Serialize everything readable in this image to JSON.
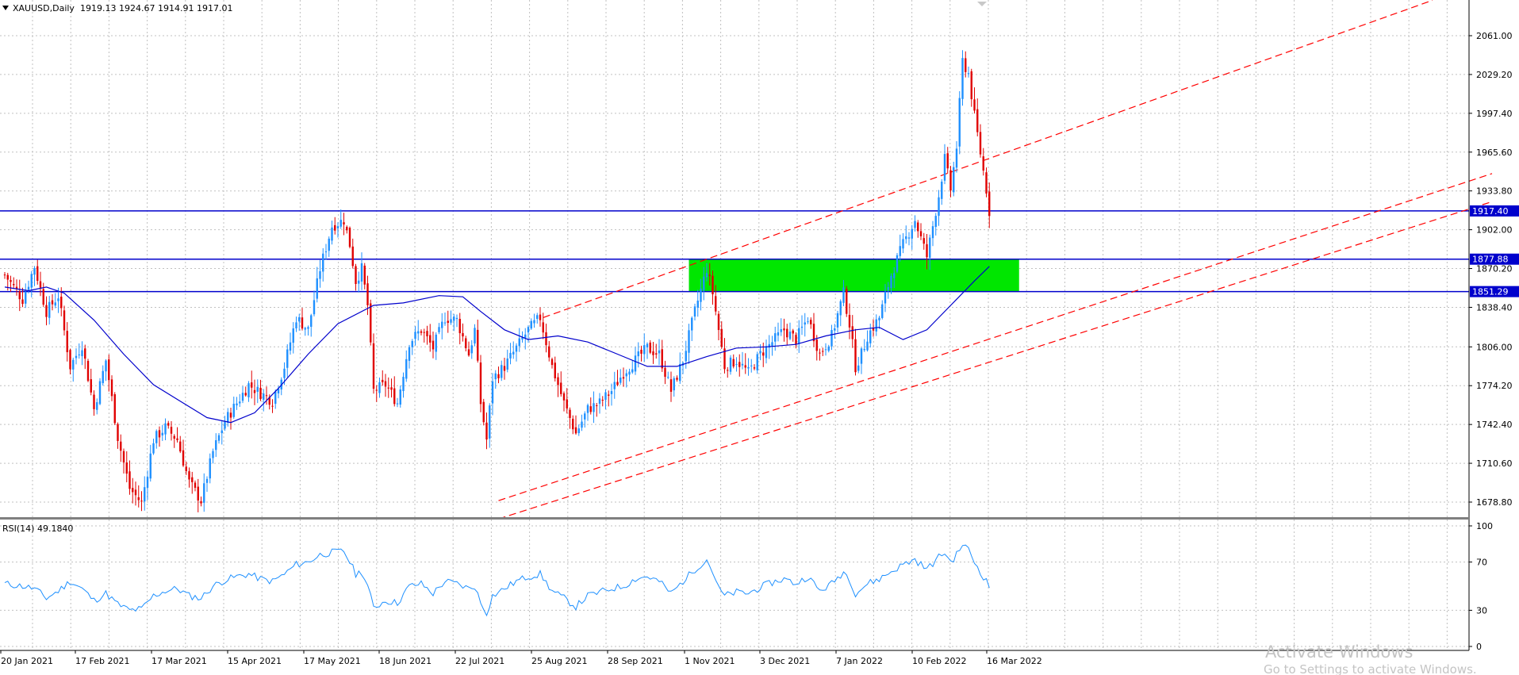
{
  "header": {
    "symbol": "XAUUSD,Daily",
    "ohlc": "1919.13 1924.67 1914.91 1917.01"
  },
  "rsi_header": "RSI(14) 49.1840",
  "watermark": {
    "line1": "Activate Windows",
    "line2": "Go to Settings to activate Windows."
  },
  "colors": {
    "bull": "#1e90ff",
    "bear": "#e00000",
    "ma": "#0000cc",
    "level": "#0000cc",
    "zone": "#00e600",
    "trend": "#ff0000",
    "rsi": "#1e90ff",
    "grid": "#c0c0c0"
  },
  "icons": {
    "menu": "triangle-down-icon",
    "shift": "chart-shift-triangle-icon"
  },
  "chart_data": [
    {
      "type": "candlestick",
      "title": "XAUUSD,Daily",
      "x_labels": [
        "20 Jan 2021",
        "17 Feb 2021",
        "17 Mar 2021",
        "15 Apr 2021",
        "17 May 2021",
        "18 Jun 2021",
        "22 Jul 2021",
        "25 Aug 2021",
        "28 Sep 2021",
        "1 Nov 2021",
        "3 Dec 2021",
        "7 Jan 2022",
        "10 Feb 2022",
        "16 Mar 2022"
      ],
      "y_ticks": [
        2061.0,
        2029.2,
        1997.4,
        1965.6,
        1933.8,
        1902.0,
        1870.2,
        1838.4,
        1806.0,
        1774.2,
        1742.4,
        1710.6,
        1678.8
      ],
      "ylim": [
        1665.0,
        2085.0
      ],
      "grid": true,
      "close_path": [
        [
          0,
          1865
        ],
        [
          6,
          1845
        ],
        [
          10,
          1872
        ],
        [
          14,
          1835
        ],
        [
          18,
          1848
        ],
        [
          22,
          1790
        ],
        [
          26,
          1808
        ],
        [
          30,
          1755
        ],
        [
          34,
          1795
        ],
        [
          38,
          1732
        ],
        [
          42,
          1690
        ],
        [
          46,
          1678
        ],
        [
          50,
          1730
        ],
        [
          54,
          1740
        ],
        [
          58,
          1730
        ],
        [
          62,
          1695
        ],
        [
          66,
          1680
        ],
        [
          70,
          1720
        ],
        [
          74,
          1745
        ],
        [
          78,
          1760
        ],
        [
          82,
          1775
        ],
        [
          86,
          1768
        ],
        [
          90,
          1762
        ],
        [
          94,
          1790
        ],
        [
          98,
          1830
        ],
        [
          102,
          1820
        ],
        [
          106,
          1870
        ],
        [
          110,
          1905
        ],
        [
          114,
          1910
        ],
        [
          116,
          1890
        ],
        [
          118,
          1860
        ],
        [
          120,
          1870
        ],
        [
          122,
          1840
        ],
        [
          124,
          1770
        ],
        [
          128,
          1775
        ],
        [
          132,
          1760
        ],
        [
          136,
          1810
        ],
        [
          140,
          1820
        ],
        [
          144,
          1805
        ],
        [
          148,
          1830
        ],
        [
          152,
          1828
        ],
        [
          156,
          1800
        ],
        [
          158,
          1820
        ],
        [
          160,
          1760
        ],
        [
          162,
          1730
        ],
        [
          164,
          1780
        ],
        [
          168,
          1790
        ],
        [
          172,
          1805
        ],
        [
          176,
          1820
        ],
        [
          180,
          1830
        ],
        [
          184,
          1790
        ],
        [
          188,
          1760
        ],
        [
          192,
          1735
        ],
        [
          196,
          1755
        ],
        [
          200,
          1760
        ],
        [
          204,
          1770
        ],
        [
          208,
          1785
        ],
        [
          212,
          1795
        ],
        [
          216,
          1805
        ],
        [
          220,
          1800
        ],
        [
          224,
          1770
        ],
        [
          228,
          1795
        ],
        [
          232,
          1835
        ],
        [
          236,
          1870
        ],
        [
          238,
          1850
        ],
        [
          240,
          1820
        ],
        [
          242,
          1790
        ],
        [
          246,
          1795
        ],
        [
          250,
          1785
        ],
        [
          254,
          1800
        ],
        [
          258,
          1810
        ],
        [
          262,
          1820
        ],
        [
          266,
          1812
        ],
        [
          270,
          1830
        ],
        [
          274,
          1800
        ],
        [
          278,
          1815
        ],
        [
          282,
          1850
        ],
        [
          284,
          1825
        ],
        [
          286,
          1790
        ],
        [
          288,
          1800
        ],
        [
          290,
          1815
        ],
        [
          294,
          1830
        ],
        [
          298,
          1865
        ],
        [
          302,
          1890
        ],
        [
          306,
          1910
        ],
        [
          310,
          1880
        ],
        [
          314,
          1930
        ],
        [
          316,
          1960
        ],
        [
          318,
          1935
        ],
        [
          320,
          1970
        ],
        [
          322,
          2040
        ],
        [
          324,
          2030
        ],
        [
          326,
          1995
        ],
        [
          328,
          1965
        ],
        [
          330,
          1935
        ],
        [
          331,
          1917
        ]
      ],
      "ma_path": [
        [
          0,
          1855
        ],
        [
          8,
          1852
        ],
        [
          14,
          1855
        ],
        [
          20,
          1850
        ],
        [
          30,
          1828
        ],
        [
          40,
          1800
        ],
        [
          50,
          1775
        ],
        [
          60,
          1760
        ],
        [
          68,
          1748
        ],
        [
          76,
          1744
        ],
        [
          84,
          1752
        ],
        [
          92,
          1772
        ],
        [
          102,
          1800
        ],
        [
          112,
          1825
        ],
        [
          124,
          1840
        ],
        [
          134,
          1842
        ],
        [
          146,
          1848
        ],
        [
          154,
          1847
        ],
        [
          160,
          1835
        ],
        [
          168,
          1820
        ],
        [
          176,
          1812
        ],
        [
          186,
          1815
        ],
        [
          196,
          1810
        ],
        [
          206,
          1800
        ],
        [
          216,
          1790
        ],
        [
          226,
          1790
        ],
        [
          236,
          1798
        ],
        [
          246,
          1805
        ],
        [
          256,
          1806
        ],
        [
          266,
          1808
        ],
        [
          276,
          1815
        ],
        [
          286,
          1820
        ],
        [
          294,
          1822
        ],
        [
          302,
          1812
        ],
        [
          310,
          1820
        ],
        [
          318,
          1840
        ],
        [
          326,
          1860
        ],
        [
          331,
          1872
        ]
      ],
      "horizontal_levels": [
        {
          "value": 1917.4,
          "label": "1917.40"
        },
        {
          "value": 1877.88,
          "label": "1877.88"
        },
        {
          "value": 1851.29,
          "label": "1851.29"
        }
      ],
      "zone": {
        "x0": 230,
        "x1": 341,
        "y0": 1851.29,
        "y1": 1877.88
      },
      "trendlines": [
        {
          "x0": 181,
          "y0": 1830,
          "x1": 480,
          "y1": 2090
        },
        {
          "x0": 166,
          "y0": 1680,
          "x1": 500,
          "y1": 1948
        },
        {
          "x0": 166,
          "y0": 1665,
          "x1": 500,
          "y1": 1925
        }
      ],
      "n_bars": 332
    },
    {
      "type": "line",
      "title": "RSI(14) 49.1840",
      "ylim": [
        0,
        100
      ],
      "y_ticks": [
        100,
        70,
        30,
        0
      ],
      "series": [
        {
          "values_path": [
            [
              0,
              52
            ],
            [
              6,
              50
            ],
            [
              10,
              48
            ],
            [
              14,
              40
            ],
            [
              18,
              46
            ],
            [
              22,
              54
            ],
            [
              26,
              48
            ],
            [
              30,
              38
            ],
            [
              34,
              44
            ],
            [
              38,
              35
            ],
            [
              42,
              30
            ],
            [
              46,
              31
            ],
            [
              50,
              42
            ],
            [
              54,
              46
            ],
            [
              58,
              48
            ],
            [
              62,
              42
            ],
            [
              66,
              40
            ],
            [
              70,
              50
            ],
            [
              74,
              55
            ],
            [
              78,
              58
            ],
            [
              82,
              60
            ],
            [
              86,
              56
            ],
            [
              90,
              54
            ],
            [
              94,
              60
            ],
            [
              98,
              68
            ],
            [
              102,
              70
            ],
            [
              106,
              76
            ],
            [
              110,
              78
            ],
            [
              114,
              79
            ],
            [
              116,
              70
            ],
            [
              118,
              60
            ],
            [
              120,
              62
            ],
            [
              122,
              50
            ],
            [
              124,
              32
            ],
            [
              128,
              38
            ],
            [
              132,
              36
            ],
            [
              136,
              50
            ],
            [
              140,
              52
            ],
            [
              144,
              44
            ],
            [
              148,
              54
            ],
            [
              152,
              52
            ],
            [
              156,
              48
            ],
            [
              158,
              50
            ],
            [
              160,
              36
            ],
            [
              162,
              28
            ],
            [
              164,
              42
            ],
            [
              168,
              48
            ],
            [
              172,
              54
            ],
            [
              176,
              58
            ],
            [
              180,
              60
            ],
            [
              184,
              46
            ],
            [
              188,
              40
            ],
            [
              192,
              33
            ],
            [
              196,
              42
            ],
            [
              200,
              45
            ],
            [
              204,
              48
            ],
            [
              208,
              50
            ],
            [
              212,
              56
            ],
            [
              216,
              58
            ],
            [
              220,
              54
            ],
            [
              224,
              44
            ],
            [
              228,
              54
            ],
            [
              232,
              64
            ],
            [
              236,
              72
            ],
            [
              238,
              62
            ],
            [
              240,
              48
            ],
            [
              242,
              42
            ],
            [
              246,
              45
            ],
            [
              250,
              44
            ],
            [
              254,
              49
            ],
            [
              258,
              53
            ],
            [
              262,
              56
            ],
            [
              266,
              52
            ],
            [
              270,
              58
            ],
            [
              274,
              46
            ],
            [
              278,
              52
            ],
            [
              282,
              62
            ],
            [
              284,
              56
            ],
            [
              286,
              44
            ],
            [
              288,
              48
            ],
            [
              290,
              52
            ],
            [
              294,
              56
            ],
            [
              298,
              62
            ],
            [
              302,
              68
            ],
            [
              306,
              72
            ],
            [
              310,
              64
            ],
            [
              314,
              74
            ],
            [
              316,
              78
            ],
            [
              318,
              70
            ],
            [
              320,
              76
            ],
            [
              322,
              85
            ],
            [
              324,
              80
            ],
            [
              326,
              70
            ],
            [
              328,
              62
            ],
            [
              330,
              54
            ],
            [
              331,
              49
            ]
          ]
        }
      ]
    }
  ]
}
